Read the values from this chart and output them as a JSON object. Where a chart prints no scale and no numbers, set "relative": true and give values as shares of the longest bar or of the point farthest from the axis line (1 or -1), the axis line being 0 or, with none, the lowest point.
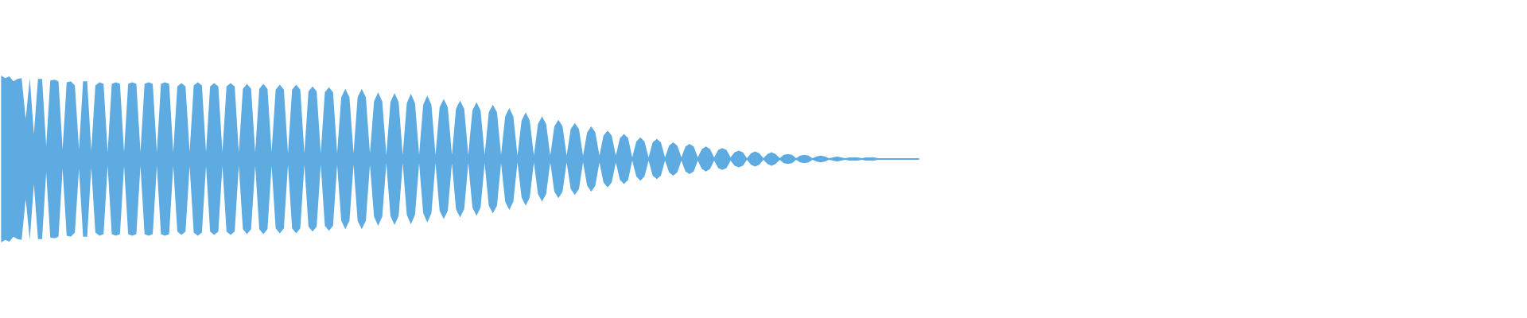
{
  "chart_data": {
    "type": "area",
    "relative": true,
    "categories": [
      null,
      null,
      null,
      null,
      null,
      null,
      null,
      null,
      null,
      null,
      null,
      null,
      null,
      null,
      null,
      null,
      null,
      null,
      null,
      null,
      null,
      null,
      null,
      null,
      null,
      null,
      null,
      null,
      null,
      null,
      null,
      null,
      null,
      null,
      null,
      null,
      null,
      null,
      null,
      null,
      null,
      null,
      null,
      null,
      null,
      null,
      null,
      null,
      null,
      null,
      null,
      null,
      null,
      null,
      null,
      null,
      null,
      null,
      null,
      null,
      null,
      null,
      null,
      null,
      null,
      null,
      null,
      null,
      null,
      null,
      null,
      null,
      null,
      null,
      null,
      null,
      null,
      null,
      null,
      null,
      null,
      null,
      null,
      null,
      null,
      null,
      null,
      null,
      null,
      null,
      null,
      null,
      null,
      null,
      null,
      null,
      null,
      null,
      null,
      null,
      null,
      null,
      null,
      null,
      null,
      null,
      null,
      null,
      null,
      null,
      null,
      null,
      null,
      null,
      null,
      null,
      null,
      null,
      null,
      null,
      null,
      null,
      null,
      null,
      null,
      null,
      null,
      null,
      null,
      null,
      null,
      null,
      null,
      null,
      null,
      null,
      null,
      null,
      null,
      null,
      null,
      null,
      null,
      null,
      null,
      null,
      null,
      null,
      null,
      null,
      null,
      null,
      null,
      null,
      null,
      null,
      null,
      null,
      null,
      null,
      null,
      null,
      null,
      null,
      null,
      null,
      null,
      null,
      null,
      null,
      null,
      null,
      null,
      null,
      null,
      null,
      null,
      null,
      null,
      null,
      null,
      null,
      null,
      null,
      null,
      null,
      null,
      null,
      null,
      null,
      null,
      null,
      null,
      null,
      null,
      null,
      null,
      null,
      null,
      null,
      null,
      null,
      null,
      null,
      null,
      null,
      null,
      null,
      null,
      null,
      null,
      null,
      null,
      null,
      null,
      null,
      null,
      null,
      null,
      null,
      null,
      null,
      null,
      null,
      null
    ],
    "series": [
      {
        "color": "#5dabe0",
        "values": [
          1.0,
          0.97,
          0.99,
          0.93,
          0.96,
          0.97,
          0.48,
          0.97,
          0.3,
          0.96,
          0.96,
          0.16,
          0.94,
          0.95,
          0.93,
          0.12,
          0.92,
          0.93,
          0.88,
          0.12,
          0.93,
          0.93,
          0.1,
          0.88,
          0.92,
          0.9,
          0.08,
          0.9,
          0.92,
          0.9,
          0.08,
          0.9,
          0.92,
          0.9,
          0.08,
          0.9,
          0.92,
          0.9,
          0.08,
          0.9,
          0.92,
          0.9,
          0.08,
          0.87,
          0.91,
          0.87,
          0.08,
          0.88,
          0.92,
          0.88,
          0.08,
          0.87,
          0.91,
          0.87,
          0.08,
          0.87,
          0.91,
          0.87,
          0.08,
          0.84,
          0.9,
          0.84,
          0.08,
          0.84,
          0.9,
          0.84,
          0.08,
          0.83,
          0.89,
          0.83,
          0.07,
          0.83,
          0.89,
          0.83,
          0.07,
          0.81,
          0.87,
          0.81,
          0.07,
          0.8,
          0.86,
          0.8,
          0.07,
          0.74,
          0.84,
          0.74,
          0.07,
          0.74,
          0.84,
          0.74,
          0.07,
          0.69,
          0.8,
          0.69,
          0.05,
          0.68,
          0.79,
          0.68,
          0.05,
          0.67,
          0.78,
          0.67,
          0.05,
          0.65,
          0.76,
          0.65,
          0.05,
          0.62,
          0.72,
          0.62,
          0.05,
          0.6,
          0.7,
          0.6,
          0.05,
          0.58,
          0.68,
          0.58,
          0.05,
          0.56,
          0.65,
          0.56,
          0.05,
          0.51,
          0.61,
          0.51,
          0.04,
          0.46,
          0.56,
          0.46,
          0.04,
          0.42,
          0.51,
          0.42,
          0.04,
          0.39,
          0.47,
          0.39,
          0.04,
          0.36,
          0.43,
          0.36,
          0.04,
          0.32,
          0.39,
          0.32,
          0.04,
          0.28,
          0.34,
          0.28,
          0.04,
          0.25,
          0.3,
          0.25,
          0.02,
          0.21,
          0.26,
          0.21,
          0.02,
          0.2,
          0.24,
          0.2,
          0.02,
          0.16,
          0.2,
          0.16,
          0.02,
          0.15,
          0.18,
          0.15,
          0.02,
          0.12,
          0.15,
          0.12,
          0.02,
          0.11,
          0.13,
          0.11,
          0.02,
          0.08,
          0.1,
          0.08,
          0.01,
          0.07,
          0.09,
          0.07,
          0.01,
          0.06,
          0.08,
          0.06,
          0.01,
          0.05,
          0.06,
          0.05,
          0.01,
          0.04,
          0.05,
          0.04,
          0.01,
          0.03,
          0.04,
          0.03,
          0.01,
          0.02,
          0.03,
          0.02,
          0.01,
          0.02,
          0.02,
          0.02,
          0.01,
          0.02,
          0.02,
          0.02,
          0.01,
          0.01,
          0.01,
          0.01,
          0.01,
          0.01,
          0.01,
          0.01,
          0.01,
          0.01,
          0.01
        ]
      },
      {
        "color": "#5dabe0",
        "values": [
          -1.0,
          -0.97,
          -0.99,
          -0.93,
          -0.96,
          -0.97,
          -0.48,
          -0.97,
          -0.3,
          -0.96,
          -0.96,
          -0.16,
          -0.94,
          -0.95,
          -0.93,
          -0.12,
          -0.92,
          -0.93,
          -0.88,
          -0.12,
          -0.93,
          -0.93,
          -0.1,
          -0.88,
          -0.92,
          -0.9,
          -0.08,
          -0.9,
          -0.92,
          -0.9,
          -0.08,
          -0.9,
          -0.92,
          -0.9,
          -0.08,
          -0.9,
          -0.92,
          -0.9,
          -0.08,
          -0.9,
          -0.92,
          -0.9,
          -0.08,
          -0.87,
          -0.91,
          -0.87,
          -0.08,
          -0.88,
          -0.92,
          -0.88,
          -0.08,
          -0.87,
          -0.91,
          -0.87,
          -0.08,
          -0.87,
          -0.91,
          -0.87,
          -0.08,
          -0.84,
          -0.9,
          -0.84,
          -0.08,
          -0.84,
          -0.9,
          -0.84,
          -0.08,
          -0.83,
          -0.89,
          -0.83,
          -0.07,
          -0.83,
          -0.89,
          -0.83,
          -0.07,
          -0.81,
          -0.87,
          -0.81,
          -0.07,
          -0.8,
          -0.86,
          -0.8,
          -0.07,
          -0.74,
          -0.84,
          -0.74,
          -0.07,
          -0.74,
          -0.84,
          -0.74,
          -0.07,
          -0.69,
          -0.8,
          -0.69,
          -0.05,
          -0.68,
          -0.79,
          -0.68,
          -0.05,
          -0.67,
          -0.78,
          -0.67,
          -0.05,
          -0.65,
          -0.76,
          -0.65,
          -0.05,
          -0.62,
          -0.72,
          -0.62,
          -0.05,
          -0.6,
          -0.7,
          -0.6,
          -0.05,
          -0.58,
          -0.68,
          -0.58,
          -0.05,
          -0.56,
          -0.65,
          -0.56,
          -0.05,
          -0.51,
          -0.61,
          -0.51,
          -0.04,
          -0.46,
          -0.56,
          -0.46,
          -0.04,
          -0.42,
          -0.51,
          -0.42,
          -0.04,
          -0.39,
          -0.47,
          -0.39,
          -0.04,
          -0.36,
          -0.43,
          -0.36,
          -0.04,
          -0.32,
          -0.39,
          -0.32,
          -0.04,
          -0.28,
          -0.34,
          -0.28,
          -0.04,
          -0.25,
          -0.3,
          -0.25,
          -0.02,
          -0.21,
          -0.26,
          -0.21,
          -0.02,
          -0.2,
          -0.24,
          -0.2,
          -0.02,
          -0.16,
          -0.2,
          -0.16,
          -0.02,
          -0.15,
          -0.18,
          -0.15,
          -0.02,
          -0.12,
          -0.15,
          -0.12,
          -0.02,
          -0.11,
          -0.13,
          -0.11,
          -0.02,
          -0.08,
          -0.1,
          -0.08,
          -0.01,
          -0.07,
          -0.09,
          -0.07,
          -0.01,
          -0.06,
          -0.08,
          -0.06,
          -0.01,
          -0.05,
          -0.06,
          -0.05,
          -0.01,
          -0.04,
          -0.05,
          -0.04,
          -0.01,
          -0.03,
          -0.04,
          -0.03,
          -0.01,
          -0.02,
          -0.03,
          -0.02,
          -0.01,
          -0.02,
          -0.02,
          -0.02,
          -0.01,
          -0.02,
          -0.02,
          -0.02,
          -0.01,
          -0.01,
          -0.01,
          -0.01,
          -0.01,
          -0.01,
          -0.01,
          -0.01,
          -0.01,
          -0.01,
          -0.01
        ]
      }
    ]
  }
}
